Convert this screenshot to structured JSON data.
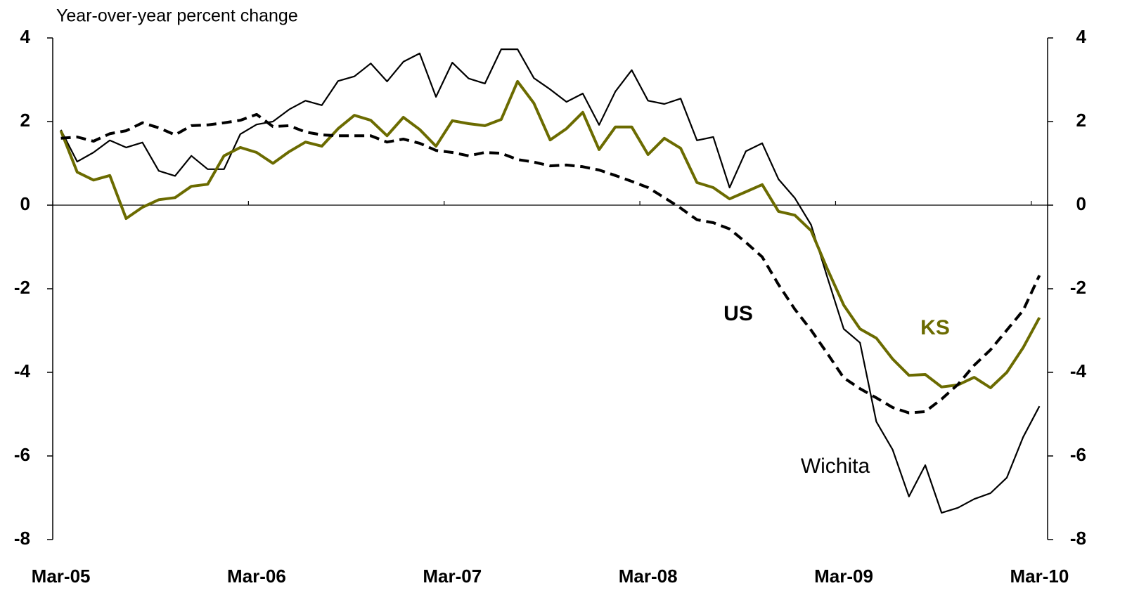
{
  "chart_data": {
    "type": "line",
    "y_label": "Year-over-year percent change",
    "categories": [
      "Mar-05",
      null,
      null,
      null,
      null,
      null,
      null,
      null,
      null,
      null,
      null,
      null,
      "Mar-06",
      null,
      null,
      null,
      null,
      null,
      null,
      null,
      null,
      null,
      null,
      null,
      "Mar-07",
      null,
      null,
      null,
      null,
      null,
      null,
      null,
      null,
      null,
      null,
      null,
      "Mar-08",
      null,
      null,
      null,
      null,
      null,
      null,
      null,
      null,
      null,
      null,
      null,
      "Mar-09",
      null,
      null,
      null,
      null,
      null,
      null,
      null,
      null,
      null,
      null,
      null,
      "Mar-10"
    ],
    "series": [
      {
        "name": "Wichita",
        "color": "#000000",
        "line_style": "solid",
        "bold_label": false,
        "values": [
          1.8,
          1.04,
          1.26,
          1.55,
          1.38,
          1.5,
          0.82,
          0.7,
          1.18,
          0.86,
          0.86,
          1.7,
          1.93,
          2.0,
          2.29,
          2.5,
          2.39,
          2.97,
          3.08,
          3.39,
          2.96,
          3.43,
          3.63,
          2.59,
          3.41,
          3.03,
          2.91,
          3.73,
          3.73,
          3.04,
          2.77,
          2.47,
          2.67,
          1.92,
          2.72,
          3.23,
          2.5,
          2.42,
          2.55,
          1.55,
          1.63,
          0.42,
          1.29,
          1.48,
          0.62,
          0.17,
          -0.47,
          -1.73,
          -2.96,
          -3.29,
          -5.18,
          -5.85,
          -6.97,
          -6.22,
          -7.36,
          -7.24,
          -7.03,
          -6.89,
          -6.52,
          -5.55,
          -4.81
        ]
      },
      {
        "name": "KS",
        "color": "#6b6b00",
        "line_style": "solid",
        "bold_label": true,
        "values": [
          1.78,
          0.79,
          0.6,
          0.71,
          -0.32,
          -0.05,
          0.13,
          0.18,
          0.45,
          0.5,
          1.18,
          1.38,
          1.26,
          1.0,
          1.28,
          1.51,
          1.41,
          1.83,
          2.15,
          2.03,
          1.66,
          2.1,
          1.81,
          1.41,
          2.02,
          1.95,
          1.9,
          2.05,
          2.96,
          2.44,
          1.56,
          1.83,
          2.22,
          1.33,
          1.87,
          1.87,
          1.21,
          1.6,
          1.36,
          0.54,
          0.42,
          0.15,
          0.32,
          0.49,
          -0.15,
          -0.24,
          -0.61,
          -1.53,
          -2.39,
          -2.96,
          -3.18,
          -3.68,
          -4.07,
          -4.05,
          -4.35,
          -4.3,
          -4.12,
          -4.37,
          -4.0,
          -3.41,
          -2.69
        ]
      },
      {
        "name": "US",
        "color": "#000000",
        "line_style": "dashed",
        "bold_label": true,
        "values": [
          1.6,
          1.63,
          1.53,
          1.71,
          1.78,
          1.97,
          1.85,
          1.68,
          1.9,
          1.92,
          1.97,
          2.03,
          2.17,
          1.88,
          1.9,
          1.75,
          1.68,
          1.66,
          1.66,
          1.66,
          1.51,
          1.58,
          1.48,
          1.31,
          1.26,
          1.18,
          1.26,
          1.24,
          1.09,
          1.03,
          0.94,
          0.96,
          0.92,
          0.84,
          0.71,
          0.57,
          0.42,
          0.18,
          -0.07,
          -0.35,
          -0.42,
          -0.57,
          -0.89,
          -1.24,
          -1.9,
          -2.49,
          -2.99,
          -3.55,
          -4.13,
          -4.39,
          -4.61,
          -4.84,
          -4.97,
          -4.94,
          -4.64,
          -4.29,
          -3.83,
          -3.46,
          -2.99,
          -2.52,
          -1.68
        ]
      }
    ],
    "ylim": [
      -8,
      4
    ],
    "yticks": [
      -8,
      -6,
      -4,
      -2,
      0,
      2,
      4
    ],
    "y2lim": [
      -8,
      4
    ],
    "y2ticks": [
      -8,
      -6,
      -4,
      -2,
      0,
      2,
      4
    ],
    "grid": false
  }
}
